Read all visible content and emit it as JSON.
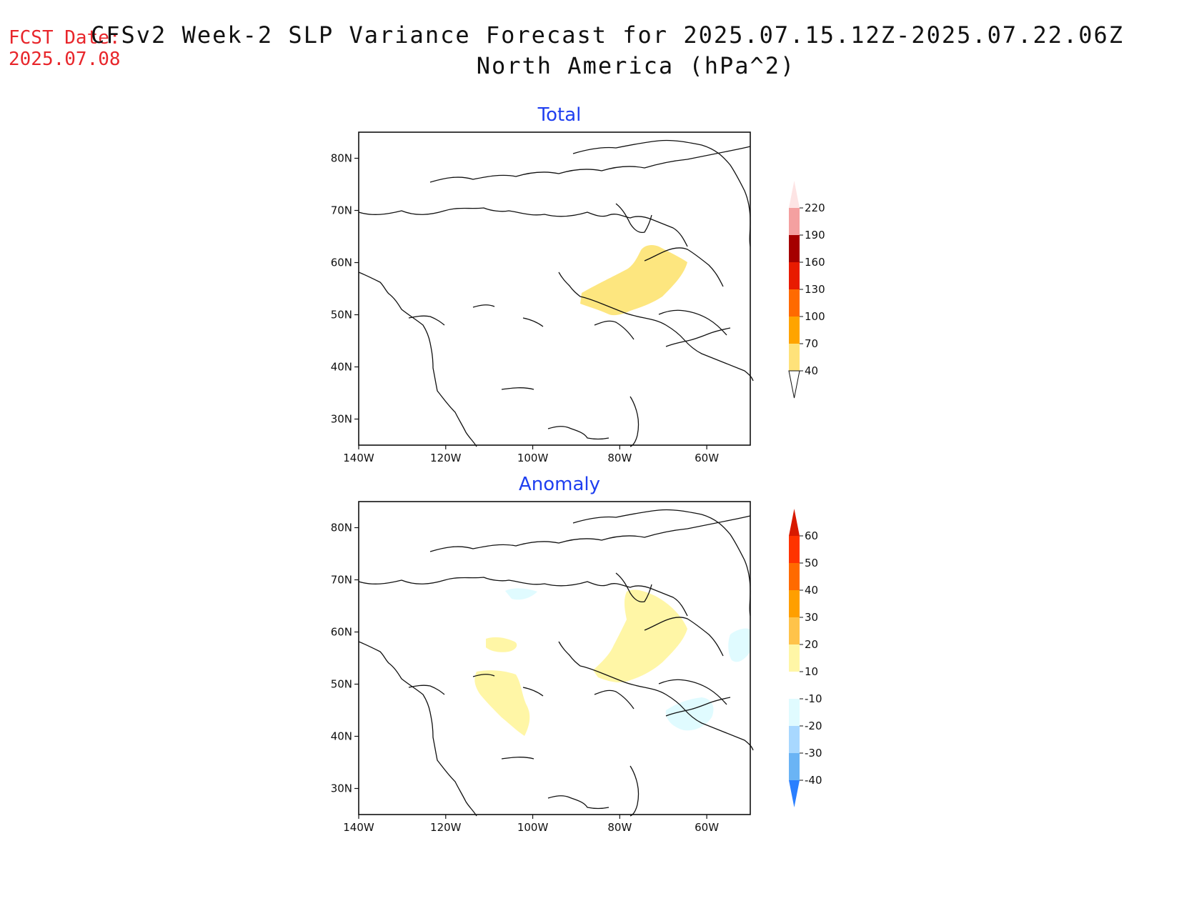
{
  "header": {
    "fcst_label": "FCST Date:",
    "fcst_date": "2025.07.08",
    "title_line1": "CFSv2 Week-2 SLP Variance Forecast for 2025.07.15.12Z-2025.07.22.06Z",
    "title_line2": "North America (hPa^2)"
  },
  "axes": {
    "lon_ticks": [
      "140W",
      "120W",
      "100W",
      "80W",
      "60W"
    ],
    "lat_ticks": [
      "80N",
      "70N",
      "60N",
      "50N",
      "40N",
      "30N"
    ],
    "lon_range": [
      -140,
      -50
    ],
    "lat_range": [
      25,
      85
    ]
  },
  "panels": [
    {
      "title": "Total",
      "colorbar": {
        "labels": [
          "40",
          "70",
          "100",
          "130",
          "160",
          "190",
          "220"
        ],
        "colors": [
          "#ffe27a",
          "#ffa400",
          "#ff6a00",
          "#e81b00",
          "#a50000",
          "#f4a0a0",
          "#fde4e4"
        ],
        "extend": "both"
      },
      "shaded_regions": [
        {
          "description": "Hudson Bay / northern Quebec",
          "range": "40-70",
          "color": "#fde67f"
        }
      ]
    },
    {
      "title": "Anomaly",
      "colorbar": {
        "labels": [
          "-40",
          "-30",
          "-20",
          "-10",
          "10",
          "20",
          "30",
          "40",
          "50",
          "60"
        ],
        "colors": [
          "#2a7fff",
          "#6ab4f5",
          "#a8d8ff",
          "#e0fbff",
          "#ffffff",
          "#fff6a6",
          "#ffc34a",
          "#ff9f00",
          "#ff6a00",
          "#ff3300",
          "#d81a00"
        ],
        "extend": "both"
      },
      "shaded_regions": [
        {
          "description": "Hudson Bay / northern Quebec",
          "range": "10-20",
          "color": "#fff6a6"
        },
        {
          "description": "Northern Rockies / Montana",
          "range": "10-20",
          "color": "#fff6a6"
        },
        {
          "description": "Western Canada",
          "range": "10-20",
          "color": "#fff6a6"
        },
        {
          "description": "Nova Scotia / Gulf of Maine",
          "range": "-10 to -20",
          "color": "#e0fbff"
        },
        {
          "description": "Labrador Sea",
          "range": "-10 to -20",
          "color": "#e0fbff"
        },
        {
          "description": "Arctic archipelago",
          "range": "-10 to -20",
          "color": "#e0fbff"
        }
      ]
    }
  ]
}
